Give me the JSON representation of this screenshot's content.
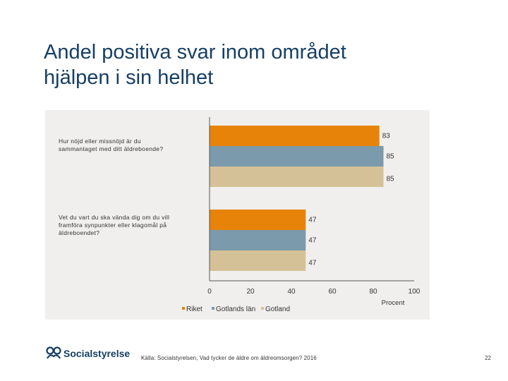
{
  "slide": {
    "title_line1": "Andel positiva svar inom området",
    "title_line2": "hjälpen i sin helhet",
    "source": "Källa: Socialstyrelsen, Vad tycker de äldre om äldreomsorgen? 2016",
    "page_number": "22",
    "logo_text": "Socialstyrelsen"
  },
  "chart_data": {
    "type": "bar",
    "orientation": "horizontal",
    "categories": [
      [
        "Hur nöjd eller missnöjd är du",
        "sammantaget med ditt äldreboende?"
      ],
      [
        "Vet du vart du ska vända dig om du vill",
        "framföra synpunkter eller klagomål på",
        "äldreboendet?"
      ]
    ],
    "series": [
      {
        "name": "Riket",
        "values": [
          83,
          47
        ],
        "color": "#e8830a"
      },
      {
        "name": "Gotlands län",
        "values": [
          85,
          47
        ],
        "color": "#7b9aab"
      },
      {
        "name": "Gotland",
        "values": [
          85,
          47
        ],
        "color": "#d5c197"
      }
    ],
    "xlim": [
      0,
      100
    ],
    "xticks": [
      0,
      20,
      40,
      60,
      80,
      100
    ],
    "xlabel": "Procent",
    "data_labels": true,
    "legend_placement": "bottom",
    "grid": false,
    "background": "#f0efed"
  }
}
